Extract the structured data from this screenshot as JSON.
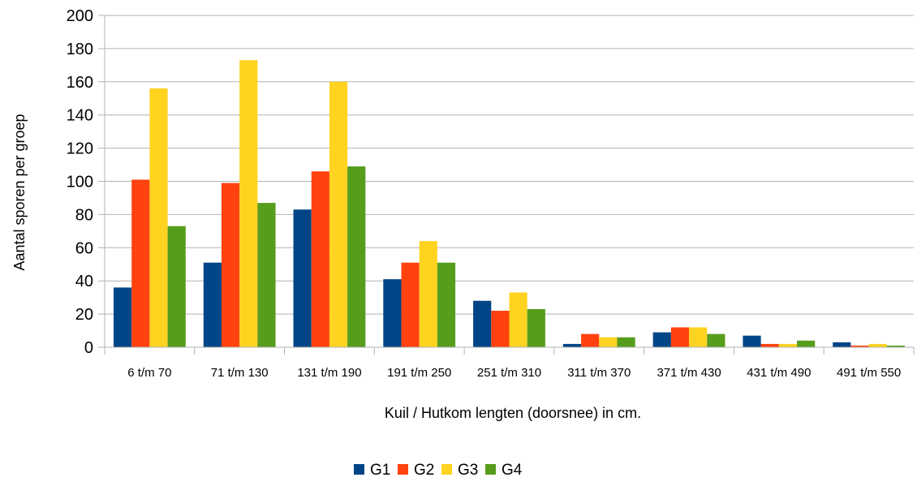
{
  "chart_data": {
    "type": "bar",
    "title": "",
    "xlabel": "Kuil / Hutkom lengten (doorsnee) in cm.",
    "ylabel": "Aantal sporen per groep",
    "ylim": [
      0,
      200
    ],
    "ytick_step": 20,
    "grid": "horizontal",
    "legend_position": "bottom",
    "categories": [
      "6 t/m 70",
      "71 t/m 130",
      "131 t/m 190",
      "191 t/m 250",
      "251 t/m 310",
      "311 t/m 370",
      "371 t/m 430",
      "431 t/m 490",
      "491 t/m 550"
    ],
    "series": [
      {
        "name": "G1",
        "color": "#004586",
        "values": [
          36,
          51,
          83,
          41,
          28,
          2,
          9,
          7,
          3
        ]
      },
      {
        "name": "G2",
        "color": "#ff420e",
        "values": [
          101,
          99,
          106,
          51,
          22,
          8,
          12,
          2,
          1
        ]
      },
      {
        "name": "G3",
        "color": "#ffd320",
        "values": [
          156,
          173,
          160,
          64,
          33,
          6,
          12,
          2,
          2
        ]
      },
      {
        "name": "G4",
        "color": "#579d1c",
        "values": [
          73,
          87,
          109,
          51,
          23,
          6,
          8,
          4,
          1
        ]
      }
    ]
  }
}
